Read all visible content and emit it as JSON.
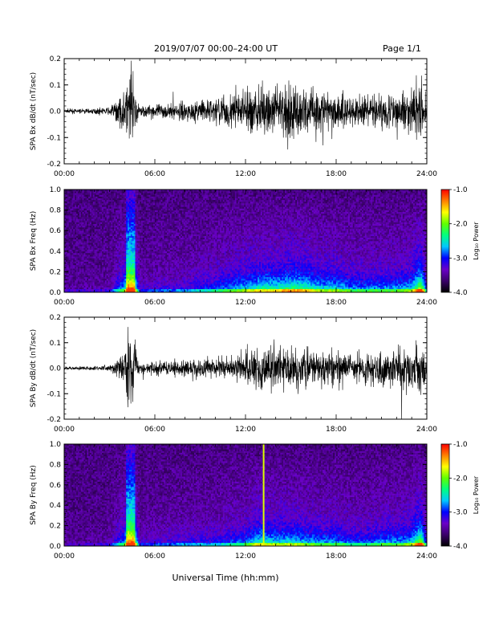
{
  "header": {
    "date_range": "2019/07/07  00:00–24:00 UT",
    "page": "Page 1/1"
  },
  "xaxis_label": "Universal Time (hh:mm)",
  "colorbar": {
    "label": "Log₁₀ Power",
    "ticks": [
      "-1.0",
      "-2.0",
      "-3.0",
      "-4.0"
    ],
    "range": [
      -4.0,
      -1.0
    ],
    "colors": [
      "#000000",
      "#3a006a",
      "#6a00c8",
      "#0000ff",
      "#00c8ff",
      "#00ff80",
      "#60ff00",
      "#ffff00",
      "#ff8000",
      "#ff0000"
    ]
  },
  "chart_data": [
    {
      "type": "line",
      "ylabel": "SPA Bx dB/dt (nT/sec)",
      "ylim": [
        -0.2,
        0.2
      ],
      "yticks": [
        "0.2",
        "0.1",
        "0.0",
        "-0.1",
        "-0.2"
      ],
      "xlim": [
        0,
        24
      ],
      "xticks": [
        "00:00",
        "06:00",
        "12:00",
        "18:00",
        "24:00"
      ],
      "envelope": {
        "hours": [
          0,
          2,
          3,
          4,
          4.3,
          4.6,
          5,
          6,
          8,
          10,
          12,
          13,
          14,
          15,
          16,
          17,
          18,
          19,
          20,
          21,
          22,
          23,
          23.6,
          24
        ],
        "amplitude": [
          0.012,
          0.015,
          0.02,
          0.12,
          0.25,
          0.2,
          0.03,
          0.04,
          0.05,
          0.08,
          0.12,
          0.14,
          0.14,
          0.16,
          0.15,
          0.12,
          0.12,
          0.1,
          0.09,
          0.1,
          0.1,
          0.12,
          0.22,
          0.05
        ]
      }
    },
    {
      "type": "heatmap",
      "ylabel": "SPA Bx Freq (Hz)",
      "ylim": [
        0.0,
        1.0
      ],
      "yticks": [
        "1.0",
        "0.8",
        "0.6",
        "0.4",
        "0.2",
        "0.0"
      ],
      "xlim": [
        0,
        24
      ],
      "xticks": [
        "00:00",
        "06:00",
        "12:00",
        "18:00",
        "24:00"
      ]
    },
    {
      "type": "line",
      "ylabel": "SPA By dB/dt (nT/sec)",
      "ylim": [
        -0.2,
        0.2
      ],
      "yticks": [
        "0.2",
        "0.1",
        "0.0",
        "-0.1",
        "-0.2"
      ],
      "xlim": [
        0,
        24
      ],
      "xticks": [
        "00:00",
        "06:00",
        "12:00",
        "18:00",
        "24:00"
      ],
      "envelope": {
        "hours": [
          0,
          2,
          3,
          4,
          4.3,
          4.6,
          5,
          6,
          8,
          10,
          12,
          13,
          14,
          15,
          16,
          17,
          18,
          19,
          20,
          21,
          22,
          23,
          23.6,
          24
        ],
        "amplitude": [
          0.01,
          0.012,
          0.02,
          0.1,
          0.25,
          0.2,
          0.03,
          0.04,
          0.05,
          0.06,
          0.09,
          0.14,
          0.12,
          0.12,
          0.11,
          0.1,
          0.1,
          0.08,
          0.08,
          0.1,
          0.1,
          0.12,
          0.2,
          0.06
        ]
      }
    },
    {
      "type": "heatmap",
      "ylabel": "SPA By Freq (Hz)",
      "ylim": [
        0.0,
        1.0
      ],
      "yticks": [
        "1.0",
        "0.8",
        "0.6",
        "0.4",
        "0.2",
        "0.0"
      ],
      "xlim": [
        0,
        24
      ],
      "xticks": [
        "00:00",
        "06:00",
        "12:00",
        "18:00",
        "24:00"
      ],
      "annotation_line_hour": 13.2
    }
  ]
}
